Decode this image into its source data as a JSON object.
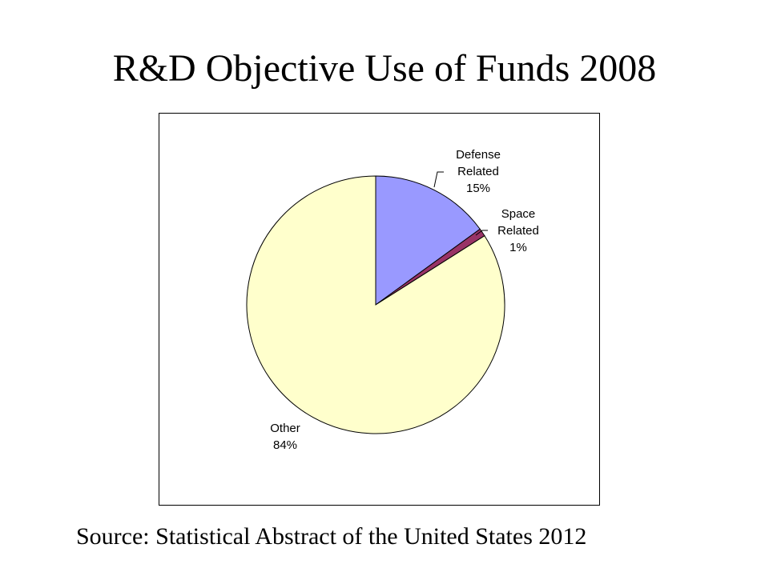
{
  "slide": {
    "title": "R&D Objective Use of Funds 2008",
    "source": "Source: Statistical Abstract of the United States 2012"
  },
  "chart_data": {
    "type": "pie",
    "title": "",
    "slices": [
      {
        "label_lines": [
          "Defense",
          "Related",
          "15%"
        ],
        "value": 15,
        "color": "#9999FF"
      },
      {
        "label_lines": [
          "Space",
          "Related",
          "1%"
        ],
        "value": 1,
        "color": "#993366"
      },
      {
        "label_lines": [
          "Other",
          "84%"
        ],
        "value": 84,
        "color": "#FFFFCC"
      }
    ],
    "start_angle": "12 o'clock",
    "direction": "clockwise",
    "legend": "none"
  }
}
